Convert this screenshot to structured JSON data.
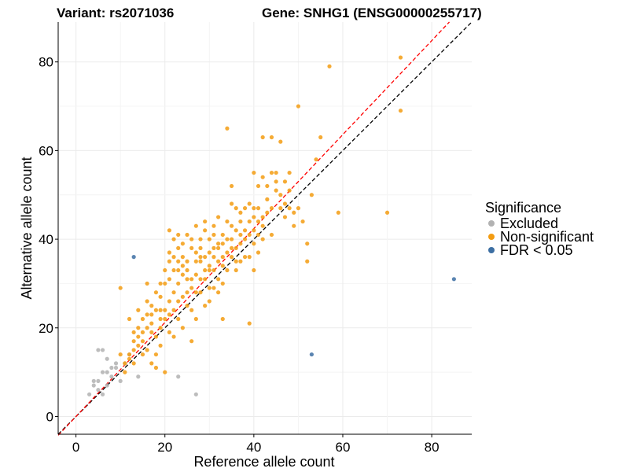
{
  "chart_data": {
    "type": "scatter",
    "title_left": "Variant: rs2071036",
    "title_right": "Gene: SNHG1 (ENSG00000255717)",
    "xlabel": "Reference allele count",
    "ylabel": "Alternative allele count",
    "xlim": [
      -4,
      89
    ],
    "ylim": [
      -4,
      89
    ],
    "xticks": [
      0,
      20,
      40,
      60,
      80
    ],
    "yticks": [
      0,
      20,
      40,
      60,
      80
    ],
    "grid": true,
    "legend_position": "right",
    "legend": {
      "title": "Significance",
      "entries": [
        {
          "label": "Excluded",
          "color": "#b2b2b2"
        },
        {
          "label": "Non-significant",
          "color": "#f39c12"
        },
        {
          "label": "FDR < 0.05",
          "color": "#3d6fa3"
        }
      ]
    },
    "reference_lines": [
      {
        "name": "identity",
        "color": "#000000",
        "style": "dashed",
        "slope": 1,
        "intercept": 0
      },
      {
        "name": "fit",
        "color": "#ff0000",
        "style": "dashed",
        "slope": 1.06,
        "intercept": 0
      }
    ],
    "series": [
      {
        "name": "Excluded",
        "color": "#b2b2b2",
        "points": [
          [
            3,
            5
          ],
          [
            4,
            8
          ],
          [
            4,
            7
          ],
          [
            5,
            6
          ],
          [
            5,
            8
          ],
          [
            5,
            15
          ],
          [
            6,
            5
          ],
          [
            6,
            10
          ],
          [
            6,
            15
          ],
          [
            7,
            7
          ],
          [
            7,
            10
          ],
          [
            7,
            13
          ],
          [
            8,
            9
          ],
          [
            8,
            11
          ],
          [
            9,
            11
          ],
          [
            9,
            12
          ],
          [
            10,
            8
          ],
          [
            11,
            12
          ],
          [
            12,
            14
          ],
          [
            14,
            9
          ],
          [
            23,
            9
          ],
          [
            27,
            5
          ]
        ]
      },
      {
        "name": "Non-significant",
        "color": "#f39c12",
        "points": [
          [
            10,
            29
          ],
          [
            10,
            14
          ],
          [
            11,
            12
          ],
          [
            11,
            10
          ],
          [
            12,
            14
          ],
          [
            12,
            13
          ],
          [
            13,
            12
          ],
          [
            13,
            15
          ],
          [
            13,
            17
          ],
          [
            14,
            20
          ],
          [
            14,
            18
          ],
          [
            14,
            16
          ],
          [
            15,
            22
          ],
          [
            15,
            17
          ],
          [
            15,
            14
          ],
          [
            16,
            30
          ],
          [
            16,
            26
          ],
          [
            16,
            20
          ],
          [
            16,
            15
          ],
          [
            17,
            19
          ],
          [
            17,
            12
          ],
          [
            17,
            21
          ],
          [
            18,
            14
          ],
          [
            18,
            18
          ],
          [
            18,
            24
          ],
          [
            18,
            11
          ],
          [
            19,
            22
          ],
          [
            19,
            27
          ],
          [
            19,
            20
          ],
          [
            19,
            16
          ],
          [
            20,
            24
          ],
          [
            20,
            22
          ],
          [
            20,
            30
          ],
          [
            20,
            10
          ],
          [
            21,
            26
          ],
          [
            21,
            19
          ],
          [
            21,
            35
          ],
          [
            21,
            37
          ],
          [
            21,
            42
          ],
          [
            22,
            40
          ],
          [
            22,
            28
          ],
          [
            22,
            24
          ],
          [
            22,
            33
          ],
          [
            22,
            18
          ],
          [
            23,
            35
          ],
          [
            23,
            41
          ],
          [
            23,
            38
          ],
          [
            23,
            26
          ],
          [
            23,
            30
          ],
          [
            23,
            22
          ],
          [
            24,
            34
          ],
          [
            24,
            32
          ],
          [
            24,
            27
          ],
          [
            24,
            20
          ],
          [
            24,
            36
          ],
          [
            25,
            41
          ],
          [
            25,
            35
          ],
          [
            25,
            28
          ],
          [
            25,
            33
          ],
          [
            25,
            25
          ],
          [
            26,
            31
          ],
          [
            26,
            29
          ],
          [
            26,
            38
          ],
          [
            26,
            17
          ],
          [
            26,
            24
          ],
          [
            27,
            37
          ],
          [
            27,
            32
          ],
          [
            27,
            43
          ],
          [
            27,
            28
          ],
          [
            27,
            22
          ],
          [
            28,
            35
          ],
          [
            28,
            36
          ],
          [
            28,
            38
          ],
          [
            28,
            28
          ],
          [
            28,
            40
          ],
          [
            29,
            36
          ],
          [
            29,
            31
          ],
          [
            29,
            42
          ],
          [
            29,
            44
          ],
          [
            29,
            25
          ],
          [
            30,
            34
          ],
          [
            30,
            26
          ],
          [
            30,
            33
          ],
          [
            30,
            40
          ],
          [
            30,
            29
          ],
          [
            31,
            33
          ],
          [
            31,
            38
          ],
          [
            31,
            36
          ],
          [
            31,
            41
          ],
          [
            31,
            43
          ],
          [
            32,
            38
          ],
          [
            32,
            45
          ],
          [
            32,
            31
          ],
          [
            32,
            28
          ],
          [
            32,
            39
          ],
          [
            33,
            39
          ],
          [
            33,
            34
          ],
          [
            33,
            30
          ],
          [
            33,
            41
          ],
          [
            33,
            22
          ],
          [
            34,
            65
          ],
          [
            34,
            44
          ],
          [
            34,
            40
          ],
          [
            34,
            37
          ],
          [
            35,
            36
          ],
          [
            35,
            52
          ],
          [
            35,
            43
          ],
          [
            35,
            40
          ],
          [
            35,
            48
          ],
          [
            36,
            42
          ],
          [
            36,
            47
          ],
          [
            36,
            38
          ],
          [
            36,
            33
          ],
          [
            37,
            46
          ],
          [
            37,
            44
          ],
          [
            37,
            39
          ],
          [
            37,
            35
          ],
          [
            38,
            42
          ],
          [
            38,
            40
          ],
          [
            38,
            47
          ],
          [
            39,
            44
          ],
          [
            39,
            36
          ],
          [
            39,
            21
          ],
          [
            39,
            41
          ],
          [
            40,
            55
          ],
          [
            40,
            42
          ],
          [
            40,
            47
          ],
          [
            40,
            39
          ],
          [
            40,
            33
          ],
          [
            41,
            47
          ],
          [
            41,
            44
          ],
          [
            41,
            52
          ],
          [
            41,
            37
          ],
          [
            42,
            45
          ],
          [
            42,
            63
          ],
          [
            42,
            40
          ],
          [
            42,
            54
          ],
          [
            43,
            46
          ],
          [
            43,
            49
          ],
          [
            44,
            55
          ],
          [
            44,
            63
          ],
          [
            44,
            41
          ],
          [
            45,
            55
          ],
          [
            45,
            53
          ],
          [
            46,
            50
          ],
          [
            46,
            62
          ],
          [
            47,
            48
          ],
          [
            47,
            45
          ],
          [
            48,
            51
          ],
          [
            48,
            47
          ],
          [
            49,
            46
          ],
          [
            49,
            43
          ],
          [
            50,
            70
          ],
          [
            50,
            47
          ],
          [
            51,
            44
          ],
          [
            52,
            35
          ],
          [
            52,
            39
          ],
          [
            53,
            50
          ],
          [
            54,
            58
          ],
          [
            55,
            63
          ],
          [
            57,
            79
          ],
          [
            59,
            46
          ],
          [
            70,
            46
          ],
          [
            73,
            81
          ],
          [
            73,
            69
          ],
          [
            12,
            22
          ],
          [
            14,
            24
          ],
          [
            16,
            23
          ],
          [
            17,
            25
          ],
          [
            18,
            28
          ],
          [
            19,
            30
          ],
          [
            20,
            33
          ],
          [
            21,
            31
          ],
          [
            22,
            36
          ],
          [
            23,
            33
          ],
          [
            24,
            39
          ],
          [
            25,
            31
          ],
          [
            26,
            40
          ],
          [
            27,
            35
          ],
          [
            28,
            31
          ],
          [
            29,
            33
          ],
          [
            30,
            37
          ],
          [
            31,
            29
          ],
          [
            32,
            35
          ],
          [
            33,
            36
          ],
          [
            34,
            33
          ],
          [
            35,
            38
          ],
          [
            36,
            35
          ],
          [
            37,
            41
          ],
          [
            38,
            36
          ],
          [
            39,
            48
          ],
          [
            40,
            45
          ],
          [
            41,
            41
          ],
          [
            42,
            43
          ],
          [
            43,
            52
          ],
          [
            44,
            47
          ],
          [
            45,
            51
          ],
          [
            46,
            47
          ],
          [
            47,
            53
          ],
          [
            48,
            55
          ],
          [
            13,
            19
          ],
          [
            15,
            19
          ],
          [
            17,
            23
          ],
          [
            19,
            24
          ],
          [
            21,
            23
          ]
        ]
      },
      {
        "name": "FDR < 0.05",
        "color": "#3d6fa3",
        "points": [
          [
            13,
            36
          ],
          [
            53,
            14
          ],
          [
            85,
            31
          ]
        ]
      }
    ]
  }
}
